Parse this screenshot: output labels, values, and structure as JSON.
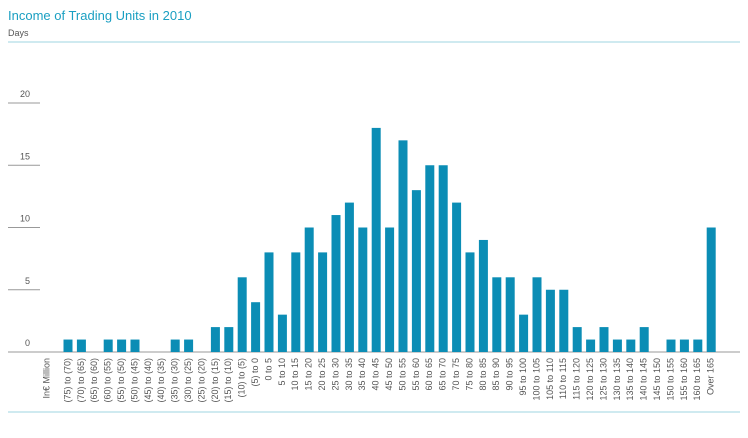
{
  "chart_data": {
    "type": "bar",
    "title": "Income of Trading Units in 2010",
    "y_label": "Days",
    "x_label": "In€ Million",
    "categories": [
      "(75) to (70)",
      "(70) to (65)",
      "(65) to (60)",
      "(60) to (55)",
      "(55) to (50)",
      "(50) to (45)",
      "(45) to (40)",
      "(40) to (35)",
      "(35) to (30)",
      "(30) to (25)",
      "(25) to (20)",
      "(20) to (15)",
      "(15) to (10)",
      "(10) to (5)",
      "(5) to 0",
      "0 to 5",
      "5 to 10",
      "10 to 15",
      "15 to 20",
      "20 to 25",
      "25 to 30",
      "30 to 35",
      "35 to 40",
      "40 to 45",
      "45 to 50",
      "50 to 55",
      "55 to 60",
      "60 to 65",
      "65 to 70",
      "70 to 75",
      "75 to 80",
      "80 to 85",
      "85 to 90",
      "90 to 95",
      "95 to 100",
      "100 to 105",
      "105 to 110",
      "110 to 115",
      "115 to 120",
      "120 to 125",
      "125 to 130",
      "130 to 135",
      "135 to 140",
      "140 to 145",
      "145 to 150",
      "150 to 155",
      "155 to 160",
      "160 to 165",
      "Over 165"
    ],
    "values": [
      1,
      1,
      0,
      1,
      1,
      1,
      0,
      0,
      1,
      1,
      0,
      2,
      2,
      6,
      4,
      8,
      3,
      8,
      10,
      8,
      11,
      12,
      10,
      18,
      10,
      17,
      13,
      15,
      15,
      12,
      8,
      9,
      6,
      6,
      3,
      6,
      5,
      5,
      2,
      1,
      2,
      1,
      1,
      2,
      0,
      1,
      1,
      1,
      10
    ],
    "color": "#0b8db5",
    "ylim": [
      0,
      20
    ],
    "yticks": [
      0,
      5,
      10,
      15,
      20
    ]
  }
}
